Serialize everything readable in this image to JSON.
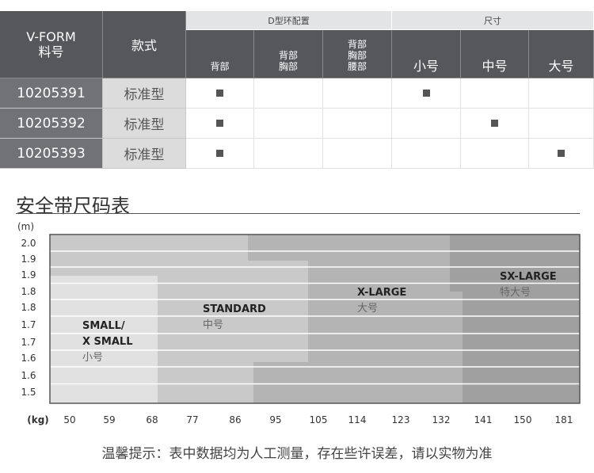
{
  "table": {
    "headers": {
      "part_no": "V-FORM\n料号",
      "style": "款式",
      "d_ring_group": "D型环配置",
      "size_group": "尺寸",
      "d_ring": [
        "背部",
        "背部\n胸部",
        "背部\n胸部\n腰部"
      ],
      "sizes": [
        "小号",
        "中号",
        "大号"
      ]
    },
    "rows": [
      {
        "part_no": "10205391",
        "style": "标准型",
        "d_ring": [
          true,
          false,
          false
        ],
        "sizes": [
          true,
          false,
          false
        ]
      },
      {
        "part_no": "10205392",
        "style": "标准型",
        "d_ring": [
          true,
          false,
          false
        ],
        "sizes": [
          false,
          true,
          false
        ]
      },
      {
        "part_no": "10205393",
        "style": "标准型",
        "d_ring": [
          true,
          false,
          false
        ],
        "sizes": [
          false,
          false,
          true
        ]
      }
    ],
    "mark_icon": "filled-square"
  },
  "section_title": "安全带尺码表",
  "chart_data": {
    "type": "area",
    "ylabel": "(m)",
    "xlabel": "(kg)",
    "y_ticks": [
      "2.0",
      "1.9",
      "1.9",
      "1.8",
      "1.8",
      "1.7",
      "1.7",
      "1.6",
      "1.6",
      "1.5"
    ],
    "x_ticks": [
      "50",
      "59",
      "68",
      "77",
      "86",
      "95",
      "105",
      "114",
      "123",
      "132",
      "141",
      "150",
      "181"
    ],
    "regions": [
      {
        "name": "SMALL/\nX SMALL",
        "cn": "小号",
        "color": "#e1e1e1"
      },
      {
        "name": "STANDARD",
        "cn": "中号",
        "color": "#c9c9ca"
      },
      {
        "name": "X-LARGE",
        "cn": "大号",
        "color": "#b4b4b5"
      },
      {
        "name": "SX-LARGE",
        "cn": "特大号",
        "color": "#a0a0a1"
      }
    ]
  },
  "footer_note": "温馨提示：表中数据均为人工测量，存在些许误差，请以实物为准"
}
